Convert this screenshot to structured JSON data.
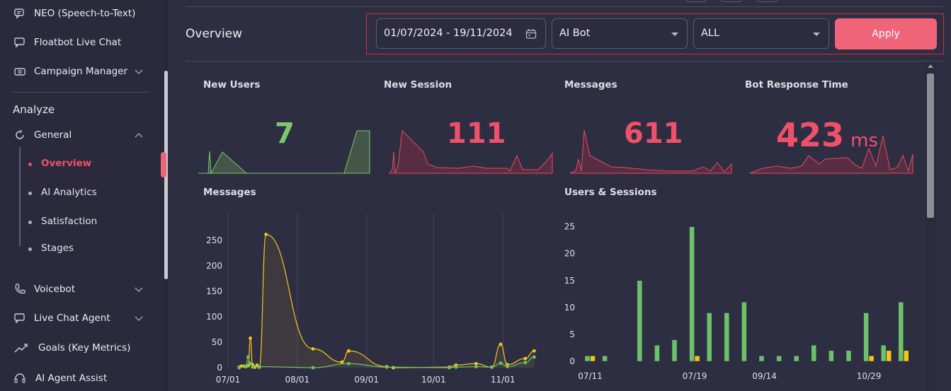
{
  "sidebar": {
    "items_top": [
      {
        "label": "NEO (Speech-to-Text)",
        "icon": "speech-bubble-icon"
      },
      {
        "label": "Floatbot Live Chat",
        "icon": "chat-icon"
      },
      {
        "label": "Campaign Manager",
        "icon": "campaign-icon"
      }
    ],
    "section": "Analyze",
    "general": {
      "label": "General",
      "icon": "refresh-icon"
    },
    "sub_items": [
      {
        "label": "Overview"
      },
      {
        "label": "AI Analytics"
      },
      {
        "label": "Satisfaction"
      },
      {
        "label": "Stages"
      }
    ],
    "items_bottom": [
      {
        "label": "Voicebot",
        "icon": "phone-icon"
      },
      {
        "label": "Live Chat Agent",
        "icon": "chat-icon"
      },
      {
        "label": "Goals (Key Metrics)",
        "icon": "trend-icon"
      },
      {
        "label": "AI Agent Assist",
        "icon": "headset-icon"
      }
    ]
  },
  "header": {
    "title": "Overview",
    "date_range": "01/07/2024 - 19/11/2024",
    "bot_select": "AI Bot",
    "channel_select": "ALL",
    "apply_label": "Apply"
  },
  "colors": {
    "accent": "#f06479",
    "green": "#7dc86b",
    "red": "#f0506a",
    "yellow": "#f5c518"
  },
  "kpis": [
    {
      "title": "New Users",
      "value": "7",
      "unit": ""
    },
    {
      "title": "New Session",
      "value": "111",
      "unit": ""
    },
    {
      "title": "Messages",
      "value": "611",
      "unit": ""
    },
    {
      "title": "Bot Response Time",
      "value": "423",
      "unit": "ms"
    }
  ],
  "chart_data": [
    {
      "type": "line",
      "title": "Messages",
      "x_ticks": [
        "07/01",
        "08/01",
        "09/01",
        "10/01",
        "11/01"
      ],
      "y_ticks": [
        "0",
        "50",
        "100",
        "150",
        "200",
        "250"
      ],
      "ylim": [
        0,
        285
      ],
      "xlim_days": [
        0,
        141
      ],
      "grid": true,
      "series": [
        {
          "color": "#f5c518",
          "points": [
            [
              5,
              1
            ],
            [
              6,
              3
            ],
            [
              7,
              3
            ],
            [
              8,
              2
            ],
            [
              9,
              4
            ],
            [
              10,
              58
            ],
            [
              11,
              6
            ],
            [
              12,
              1
            ],
            [
              13,
              5
            ],
            [
              14,
              1
            ],
            [
              17,
              262
            ],
            [
              38,
              37
            ],
            [
              51,
              11
            ],
            [
              54,
              33
            ],
            [
              71,
              2
            ],
            [
              74,
              0
            ],
            [
              99,
              1
            ],
            [
              102,
              5
            ],
            [
              111,
              8
            ],
            [
              118,
              1
            ],
            [
              122,
              46
            ],
            [
              125,
              6
            ],
            [
              133,
              18
            ],
            [
              137,
              33
            ]
          ]
        },
        {
          "color": "#6ec16b",
          "points": [
            [
              5,
              0
            ],
            [
              8,
              3
            ],
            [
              9,
              21
            ],
            [
              10,
              8
            ],
            [
              11,
              1
            ],
            [
              14,
              2
            ],
            [
              38,
              0
            ],
            [
              54,
              8
            ],
            [
              71,
              1
            ],
            [
              99,
              0
            ],
            [
              102,
              1
            ],
            [
              111,
              2
            ],
            [
              118,
              1
            ],
            [
              122,
              9
            ],
            [
              125,
              2
            ],
            [
              133,
              10
            ],
            [
              137,
              21
            ]
          ]
        }
      ]
    },
    {
      "type": "bar",
      "title": "Users & Sessions",
      "x_ticks": [
        "07/11",
        "07/19",
        "09/14",
        "10/29"
      ],
      "y_ticks": [
        "0",
        "5",
        "10",
        "15",
        "20",
        "25"
      ],
      "ylim": [
        0,
        26
      ],
      "series": [
        {
          "name": "",
          "color": "#6ec16b",
          "values": [
            1,
            1,
            0,
            15,
            3,
            4,
            25,
            9,
            9,
            11,
            1,
            1,
            1,
            3,
            2,
            2,
            9,
            3,
            11
          ]
        },
        {
          "name": "",
          "color": "#f5c518",
          "values": [
            1,
            0,
            0,
            0,
            0,
            0,
            1,
            0,
            0,
            0,
            0,
            0,
            0,
            0,
            0,
            0,
            1,
            2,
            2
          ]
        }
      ]
    }
  ]
}
